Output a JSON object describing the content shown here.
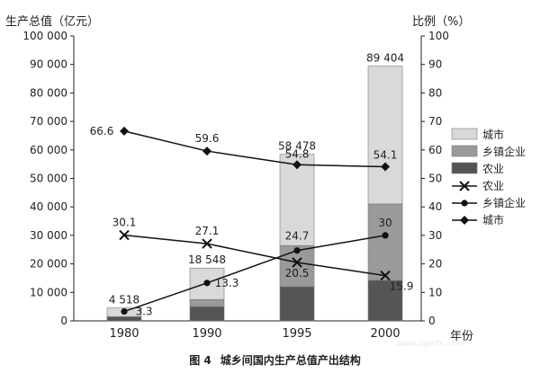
{
  "figure": {
    "number": "图 4",
    "caption": "城乡间国内生产总值产出结构",
    "watermark": "www.zgxcfx.com"
  },
  "chart_data": {
    "type": "bar",
    "stacked": true,
    "categories": [
      "1980",
      "1990",
      "1995",
      "2000"
    ],
    "xlabel": "年份",
    "ylabel": "生产总值（亿元）",
    "ylabel_right": "比例（%）",
    "ylim": [
      0,
      100000
    ],
    "ylim_right": [
      0,
      100
    ],
    "yticks": [
      "0",
      "10 000",
      "20 000",
      "30 000",
      "40 000",
      "50 000",
      "60 000",
      "70 000",
      "80 000",
      "90 000",
      "100 000"
    ],
    "yticks_right": [
      "0",
      "10",
      "20",
      "30",
      "40",
      "50",
      "60",
      "70",
      "80",
      "90",
      "100"
    ],
    "totals": [
      4518,
      18548,
      58478,
      89404
    ],
    "total_labels": [
      "4 518",
      "18 548",
      "58 478",
      "89 404"
    ],
    "bar_series": [
      {
        "name": "农业",
        "color": "#555555",
        "values": [
          1359,
          5017,
          11993,
          14212
        ]
      },
      {
        "name": "乡镇企业",
        "color": "#9a9a9a",
        "values": [
          149,
          2467,
          14444,
          26820
        ]
      },
      {
        "name": "城市",
        "color": "#d9d9d9",
        "values": [
          3010,
          11064,
          32041,
          48372
        ]
      }
    ],
    "line_series": [
      {
        "name": "农业",
        "marker": "x",
        "values": [
          30.1,
          27.1,
          20.5,
          15.9
        ],
        "labels": [
          "30.1",
          "27.1",
          "20.5",
          "15.9"
        ]
      },
      {
        "name": "乡镇企业",
        "marker": "circle",
        "values": [
          3.3,
          13.3,
          24.7,
          30
        ],
        "labels": [
          "3.3",
          "13.3",
          "24.7",
          "30"
        ]
      },
      {
        "name": "城市",
        "marker": "diamond",
        "values": [
          66.6,
          59.6,
          54.8,
          54.1
        ],
        "labels": [
          "66.6",
          "59.6",
          "54.8",
          "54.1"
        ]
      }
    ],
    "legend": {
      "position": "right",
      "entries": [
        {
          "label": "城市",
          "kind": "bar",
          "color": "#d9d9d9"
        },
        {
          "label": "乡镇企业",
          "kind": "bar",
          "color": "#9a9a9a"
        },
        {
          "label": "农业",
          "kind": "bar",
          "color": "#555555"
        },
        {
          "label": "农业",
          "kind": "line",
          "marker": "x"
        },
        {
          "label": "乡镇企业",
          "kind": "line",
          "marker": "circle"
        },
        {
          "label": "城市",
          "kind": "line",
          "marker": "diamond"
        }
      ]
    },
    "grid": false
  }
}
